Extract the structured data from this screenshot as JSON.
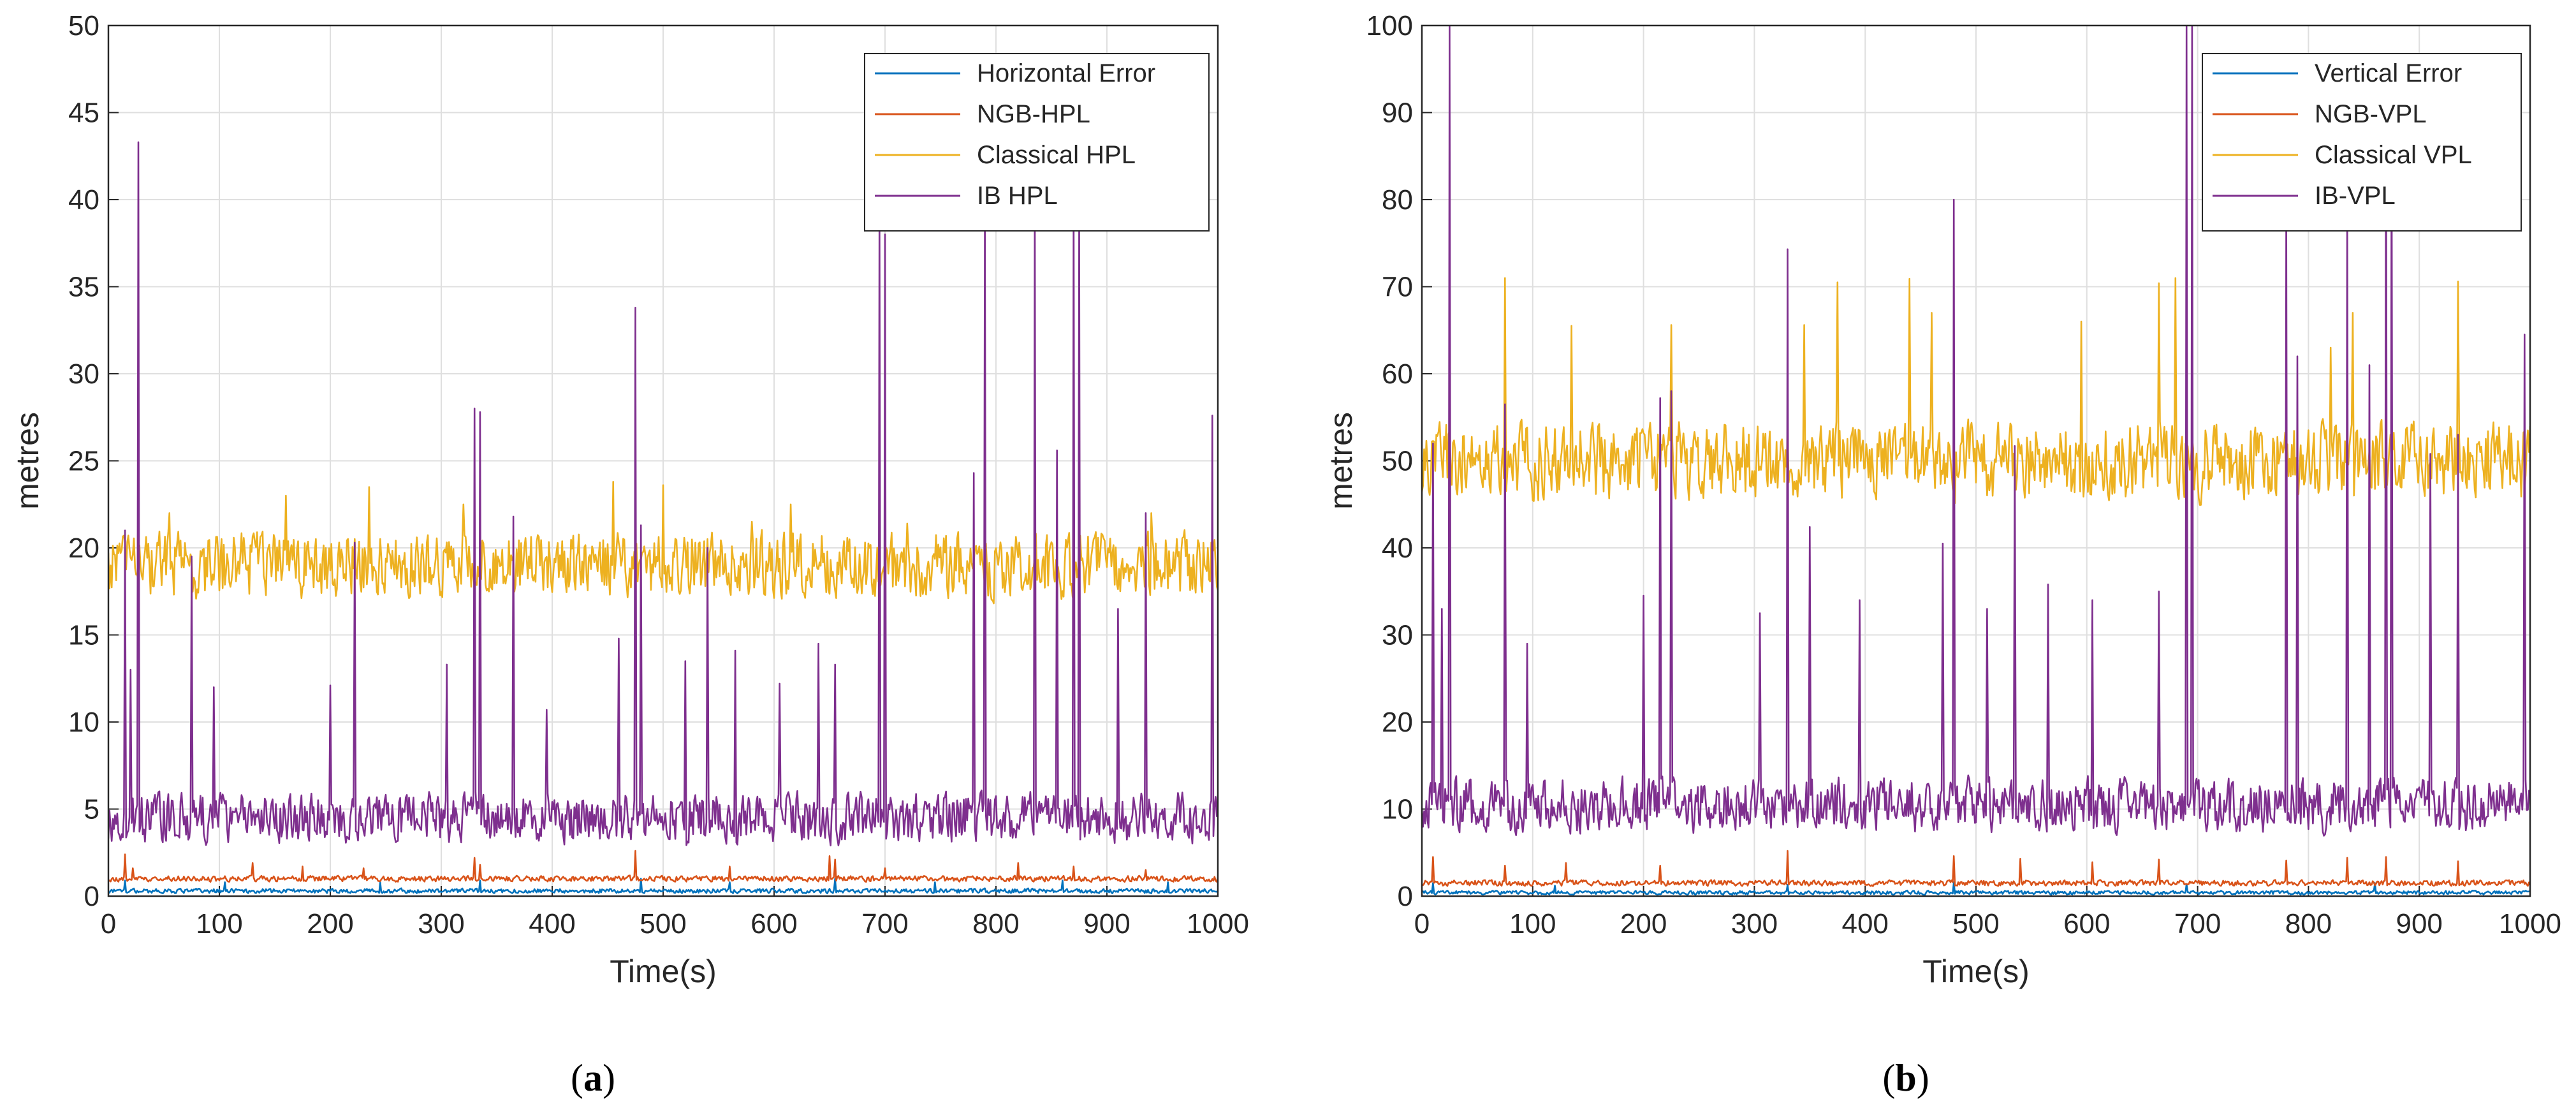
{
  "chart_data": [
    {
      "type": "line",
      "caption_open": "(",
      "caption_letter": "a",
      "caption_close": ")",
      "xlabel": "Time(s)",
      "ylabel": "metres",
      "xlim": [
        0,
        1000
      ],
      "ylim": [
        0,
        50
      ],
      "xticks": [
        0,
        100,
        200,
        300,
        400,
        500,
        600,
        700,
        800,
        900,
        1000
      ],
      "yticks": [
        0,
        5,
        10,
        15,
        20,
        25,
        30,
        35,
        40,
        45,
        50
      ],
      "grid": true,
      "legend_position": "top-right",
      "x": {
        "start": 0,
        "end": 1000,
        "step": 1
      },
      "series": [
        {
          "name": "Horizontal Error",
          "color": "#0072BD",
          "baseline": 0.3,
          "noise": 0.12,
          "spikes": [
            [
              15,
              0.9
            ],
            [
              105,
              0.8
            ],
            [
              245,
              0.8
            ],
            [
              335,
              0.9
            ],
            [
              480,
              1.0
            ],
            [
              560,
              0.8
            ],
            [
              655,
              1.0
            ],
            [
              745,
              0.8
            ],
            [
              860,
              0.9
            ],
            [
              955,
              0.8
            ]
          ]
        },
        {
          "name": "NGB-HPL",
          "color": "#D95319",
          "baseline": 1.0,
          "noise": 0.15,
          "spikes": [
            [
              15,
              2.4
            ],
            [
              22,
              1.6
            ],
            [
              130,
              1.9
            ],
            [
              175,
              1.7
            ],
            [
              230,
              1.6
            ],
            [
              330,
              2.2
            ],
            [
              335,
              1.8
            ],
            [
              475,
              2.6
            ],
            [
              560,
              1.7
            ],
            [
              650,
              2.3
            ],
            [
              655,
              2.1
            ],
            [
              700,
              1.6
            ],
            [
              820,
              1.9
            ],
            [
              870,
              1.7
            ],
            [
              935,
              1.5
            ]
          ]
        },
        {
          "name": "Classical HPL",
          "color": "#EDB120",
          "baseline": 19,
          "noise": 1.7,
          "spikes": [
            [
              55,
              22
            ],
            [
              160,
              23
            ],
            [
              235,
              23.5
            ],
            [
              320,
              22.5
            ],
            [
              455,
              23.8
            ],
            [
              500,
              23.6
            ],
            [
              580,
              21.5
            ],
            [
              615,
              22.5
            ],
            [
              720,
              21.4
            ],
            [
              940,
              22
            ]
          ]
        },
        {
          "name": "IB HPL",
          "color": "#7E2F8E",
          "baseline": 4.5,
          "noise": 1.3,
          "spikes": [
            [
              15,
              21
            ],
            [
              20,
              13
            ],
            [
              27,
              43.3
            ],
            [
              75,
              19.5
            ],
            [
              95,
              12
            ],
            [
              200,
              12.1
            ],
            [
              222,
              20.3
            ],
            [
              305,
              13.3
            ],
            [
              330,
              28
            ],
            [
              335,
              27.8
            ],
            [
              365,
              21.8
            ],
            [
              395,
              10.7
            ],
            [
              460,
              14.8
            ],
            [
              475,
              33.8
            ],
            [
              480,
              21.3
            ],
            [
              520,
              13.5
            ],
            [
              540,
              20
            ],
            [
              565,
              14.1
            ],
            [
              605,
              12.2
            ],
            [
              640,
              14.5
            ],
            [
              655,
              13.3
            ],
            [
              695,
              39.5
            ],
            [
              700,
              38
            ],
            [
              780,
              24.3
            ],
            [
              790,
              40
            ],
            [
              835,
              40
            ],
            [
              855,
              25.6
            ],
            [
              870,
              40
            ],
            [
              875,
              40
            ],
            [
              910,
              16.5
            ],
            [
              935,
              22
            ],
            [
              995,
              27.6
            ]
          ]
        }
      ]
    },
    {
      "type": "line",
      "caption_open": "(",
      "caption_letter": "b",
      "caption_close": ")",
      "xlabel": "Time(s)",
      "ylabel": "metres",
      "xlim": [
        0,
        1000
      ],
      "ylim": [
        0,
        100
      ],
      "xticks": [
        0,
        100,
        200,
        300,
        400,
        500,
        600,
        700,
        800,
        900,
        1000
      ],
      "yticks": [
        0,
        10,
        20,
        30,
        40,
        50,
        60,
        70,
        80,
        90,
        100
      ],
      "grid": true,
      "legend_position": "top-right",
      "x": {
        "start": 0,
        "end": 1000,
        "step": 1
      },
      "series": [
        {
          "name": "Vertical Error",
          "color": "#0072BD",
          "baseline": 0.4,
          "noise": 0.2,
          "spikes": [
            [
              10,
              1.5
            ],
            [
              120,
              1.2
            ],
            [
              330,
              1.3
            ],
            [
              480,
              1.6
            ],
            [
              690,
              1.4
            ],
            [
              860,
              1.5
            ]
          ]
        },
        {
          "name": "NGB-VPL",
          "color": "#D95319",
          "baseline": 1.5,
          "noise": 0.3,
          "spikes": [
            [
              10,
              4.5
            ],
            [
              75,
              3.5
            ],
            [
              130,
              3.8
            ],
            [
              215,
              3.5
            ],
            [
              330,
              5.2
            ],
            [
              480,
              4.6
            ],
            [
              540,
              4.3
            ],
            [
              605,
              3.9
            ],
            [
              665,
              4.2
            ],
            [
              780,
              4.1
            ],
            [
              835,
              4.4
            ],
            [
              870,
              4.5
            ],
            [
              935,
              4
            ]
          ]
        },
        {
          "name": "Classical VPL",
          "color": "#EDB120",
          "baseline": 50,
          "noise": 4,
          "spikes": [
            [
              75,
              71
            ],
            [
              135,
              65.5
            ],
            [
              225,
              65.6
            ],
            [
              345,
              65.6
            ],
            [
              375,
              70.5
            ],
            [
              440,
              70.9
            ],
            [
              460,
              67
            ],
            [
              595,
              66
            ],
            [
              665,
              70.4
            ],
            [
              680,
              71
            ],
            [
              820,
              63
            ],
            [
              840,
              67
            ],
            [
              935,
              70.6
            ]
          ]
        },
        {
          "name": "IB-VPL",
          "color": "#7E2F8E",
          "baseline": 10.5,
          "noise": 2.8,
          "spikes": [
            [
              10,
              52
            ],
            [
              18,
              33
            ],
            [
              25,
              100
            ],
            [
              75,
              56.5
            ],
            [
              95,
              29
            ],
            [
              200,
              34.5
            ],
            [
              215,
              57.2
            ],
            [
              225,
              58
            ],
            [
              305,
              32.5
            ],
            [
              330,
              74.3
            ],
            [
              350,
              42.4
            ],
            [
              395,
              34
            ],
            [
              470,
              40.5
            ],
            [
              480,
              80
            ],
            [
              510,
              33
            ],
            [
              535,
              51.7
            ],
            [
              565,
              35.8
            ],
            [
              605,
              34
            ],
            [
              665,
              35
            ],
            [
              690,
              100
            ],
            [
              695,
              100
            ],
            [
              780,
              80
            ],
            [
              790,
              62
            ],
            [
              835,
              80
            ],
            [
              855,
              61
            ],
            [
              870,
              94
            ],
            [
              875,
              90
            ],
            [
              910,
              50.8
            ],
            [
              935,
              53
            ],
            [
              995,
              64.5
            ]
          ]
        }
      ]
    }
  ]
}
